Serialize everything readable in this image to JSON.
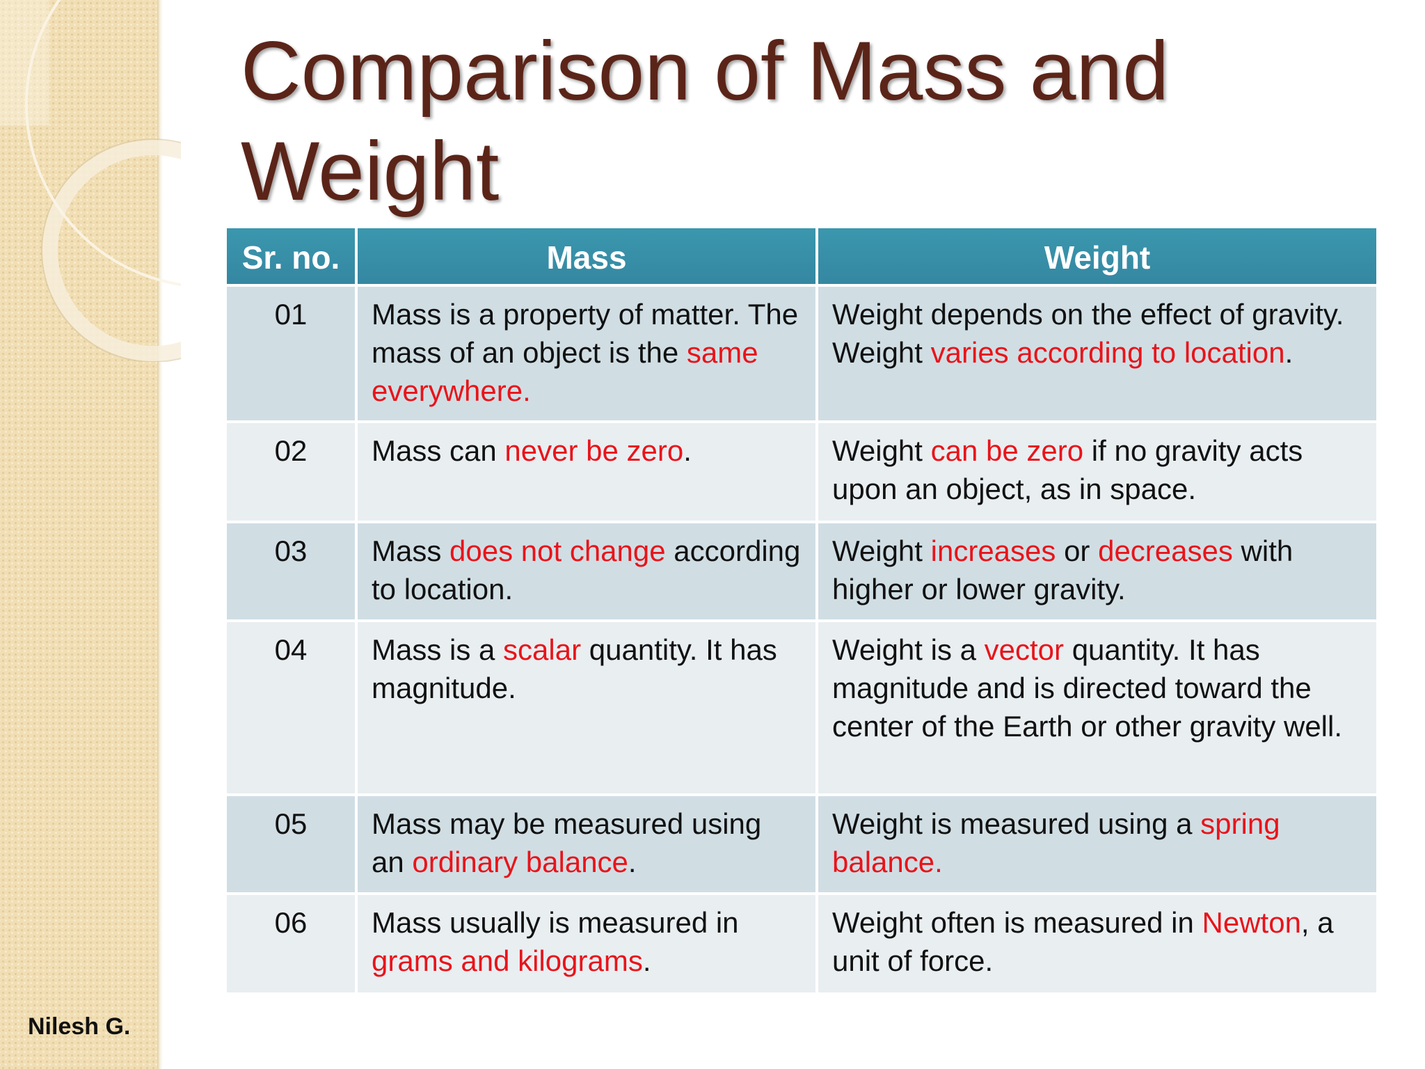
{
  "slide": {
    "title": "Comparison of Mass and Weight",
    "author": "Nilesh G.",
    "accent_color": "#e8141a",
    "header_color": "#3a92ab",
    "title_color": "#5b2418"
  },
  "table": {
    "headers": {
      "sr": "Sr. no.",
      "mass": "Mass",
      "weight": "Weight"
    },
    "rows": [
      {
        "sr": "01",
        "mass": {
          "t1": "Mass is a property of matter. The mass of an object is the ",
          "h1": "same everywhere."
        },
        "weight": {
          "t1": "Weight depends on the effect of gravity. Weight ",
          "h1": "varies according to location",
          "t2": "."
        }
      },
      {
        "sr": "02",
        "mass": {
          "t1": "Mass can ",
          "h1": "never be zero",
          "t2": "."
        },
        "weight": {
          "t1": "Weight ",
          "h1": "can be zero",
          "t2": " if no gravity acts upon an object, as in space."
        }
      },
      {
        "sr": "03",
        "mass": {
          "t1": "Mass ",
          "h1": "does not change",
          "t2": " according to location."
        },
        "weight": {
          "t1": "Weight ",
          "h1": "increases",
          "t2": " or ",
          "h2": "decreases",
          "t3": " with higher or lower gravity."
        }
      },
      {
        "sr": "04",
        "mass": {
          "t1": "Mass is a ",
          "h1": "scalar",
          "t2": " quantity. It has magnitude."
        },
        "weight": {
          "t1": "Weight is a ",
          "h1": "vector",
          "t2": " quantity. It has magnitude and is directed toward the center of the Earth or other gravity well."
        }
      },
      {
        "sr": "05",
        "mass": {
          "t1": "Mass may be measured using an ",
          "h1": "ordinary balance",
          "t2": "."
        },
        "weight": {
          "t1": "Weight is measured using a ",
          "h1": "spring balance."
        }
      },
      {
        "sr": "06",
        "mass": {
          "t1": "Mass usually is measured in ",
          "h1": "grams and kilograms",
          "t2": "."
        },
        "weight": {
          "t1": "Weight often is measured in ",
          "h1": "Newton",
          "t2": ", a unit of force."
        }
      }
    ]
  }
}
